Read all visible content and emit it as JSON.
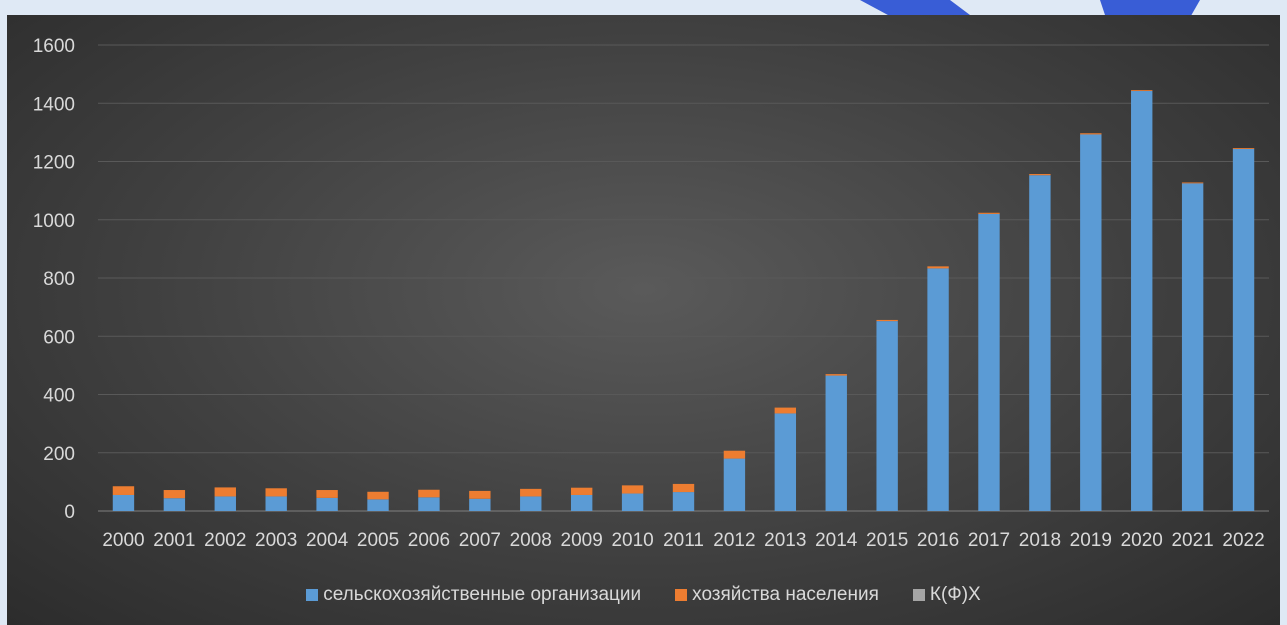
{
  "chart_data": {
    "type": "bar",
    "stacked": true,
    "title": "",
    "xlabel": "",
    "ylabel": "",
    "ylim": [
      0,
      1600
    ],
    "yticks": [
      0,
      200,
      400,
      600,
      800,
      1000,
      1200,
      1400,
      1600
    ],
    "grid": true,
    "legend_position": "bottom",
    "categories": [
      "2000",
      "2001",
      "2002",
      "2003",
      "2004",
      "2005",
      "2006",
      "2007",
      "2008",
      "2009",
      "2010",
      "2011",
      "2012",
      "2013",
      "2014",
      "2015",
      "2016",
      "2017",
      "2018",
      "2019",
      "2020",
      "2021",
      "2022"
    ],
    "series": [
      {
        "name": "сельскохозяйственные организации",
        "color": "#5b9bd5",
        "values": [
          55,
          44,
          50,
          50,
          45,
          40,
          47,
          42,
          50,
          55,
          60,
          65,
          180,
          335,
          465,
          652,
          833,
          1020,
          1153,
          1293,
          1442,
          1125,
          1243
        ]
      },
      {
        "name": "хозяйства населения",
        "color": "#ed7d31",
        "values": [
          30,
          28,
          31,
          28,
          27,
          26,
          26,
          27,
          26,
          25,
          28,
          28,
          27,
          20,
          5,
          4,
          7,
          4,
          4,
          4,
          3,
          3,
          3
        ]
      },
      {
        "name": "К(Ф)Х",
        "color": "#a5a5a5",
        "values": [
          0,
          0,
          0,
          0,
          0,
          0,
          0,
          0,
          0,
          0,
          0,
          0,
          0,
          0,
          0,
          0,
          0,
          0,
          0,
          0,
          0,
          0,
          0
        ]
      }
    ]
  },
  "colors": {
    "background_outer": "#dfe9f5",
    "plot_background": "#404040",
    "gridline": "#595959",
    "text": "#d9d9d9"
  }
}
